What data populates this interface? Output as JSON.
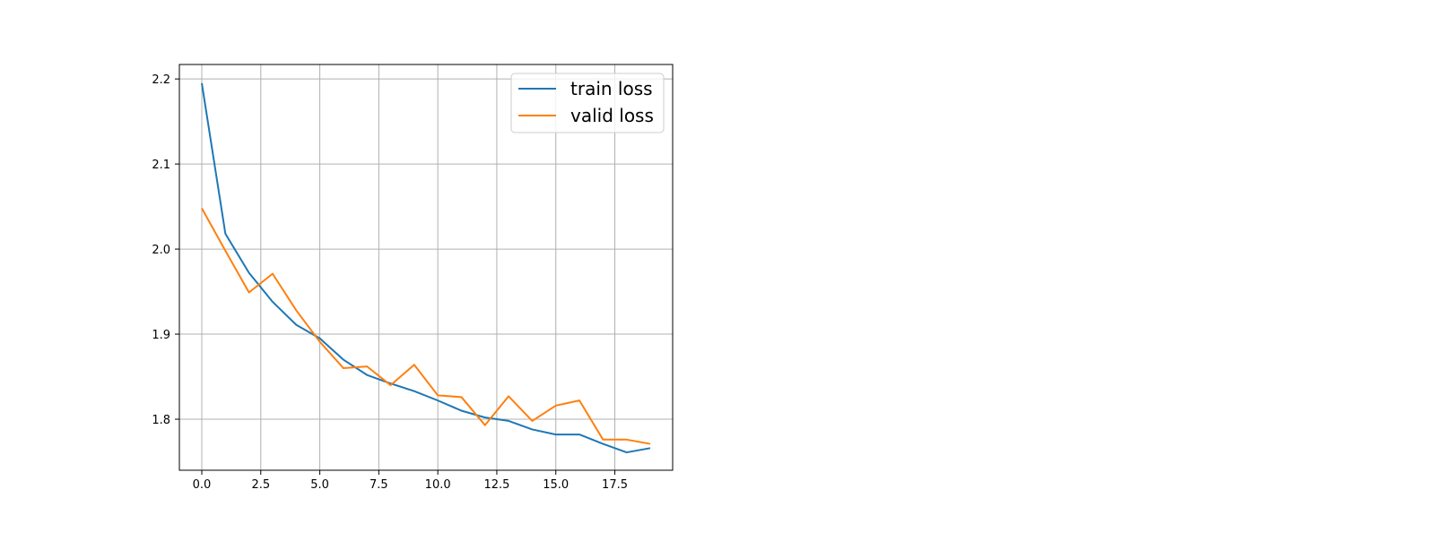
{
  "chart_data": {
    "type": "line",
    "title": "",
    "xlabel": "",
    "ylabel": "",
    "x": [
      0,
      1,
      2,
      3,
      4,
      5,
      6,
      7,
      8,
      9,
      10,
      11,
      12,
      13,
      14,
      15,
      16,
      17,
      18,
      19
    ],
    "series": [
      {
        "name": "train loss",
        "color": "#1f77b4",
        "values": [
          2.195,
          2.018,
          1.972,
          1.938,
          1.911,
          1.895,
          1.87,
          1.852,
          1.842,
          1.833,
          1.822,
          1.81,
          1.802,
          1.798,
          1.788,
          1.782,
          1.782,
          1.771,
          1.761,
          1.766
        ]
      },
      {
        "name": "valid loss",
        "color": "#ff7f0e",
        "values": [
          2.048,
          1.998,
          1.949,
          1.971,
          1.928,
          1.891,
          1.86,
          1.862,
          1.84,
          1.864,
          1.828,
          1.826,
          1.793,
          1.827,
          1.798,
          1.816,
          1.822,
          1.776,
          1.776,
          1.771
        ]
      }
    ],
    "xlim": [
      -0.95,
      19.95
    ],
    "ylim": [
      1.74,
      2.217
    ],
    "xticks": [
      0.0,
      2.5,
      5.0,
      7.5,
      10.0,
      12.5,
      15.0,
      17.5
    ],
    "xtick_labels": [
      "0.0",
      "2.5",
      "5.0",
      "7.5",
      "10.0",
      "12.5",
      "15.0",
      "17.5"
    ],
    "yticks": [
      1.8,
      1.9,
      2.0,
      2.1,
      2.2
    ],
    "ytick_labels": [
      "1.8",
      "1.9",
      "2.0",
      "2.1",
      "2.2"
    ],
    "grid": true,
    "legend_position": "top-right"
  }
}
